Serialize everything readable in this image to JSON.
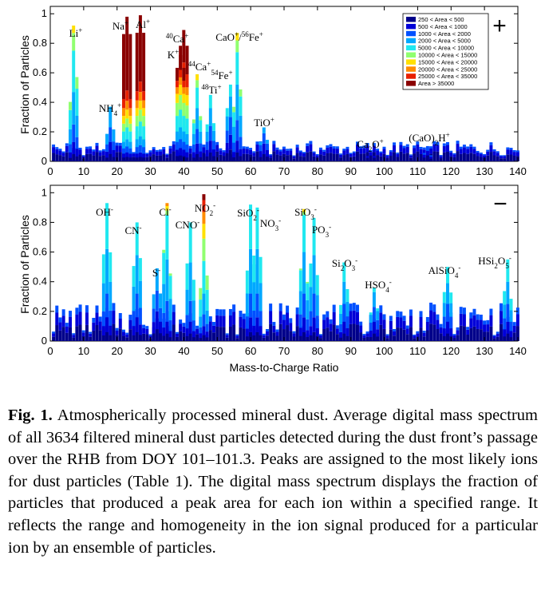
{
  "chart_data": [
    {
      "type": "bar",
      "stacked": true,
      "polarity": "+",
      "xlim": [
        0,
        140
      ],
      "ylim": [
        0,
        1.05
      ],
      "xticks": [
        "0",
        "10",
        "20",
        "30",
        "40",
        "50",
        "60",
        "70",
        "80",
        "90",
        "100",
        "110",
        "120",
        "130",
        "140"
      ],
      "yticks": [
        "0",
        "0.2",
        "0.4",
        "0.6",
        "0.8",
        "1"
      ],
      "ylabel": "Fraction of Particles",
      "grid": false,
      "legend_placement": "top-right",
      "legend": [
        {
          "label": "250 < Area < 500",
          "color": "#00008a"
        },
        {
          "label": "500 < Area < 1000",
          "color": "#0000d8"
        },
        {
          "label": "1000 < Area < 2000",
          "color": "#0050ff"
        },
        {
          "label": "2000 < Area < 5000",
          "color": "#00a8ff"
        },
        {
          "label": "5000 < Area < 10000",
          "color": "#20e8f0"
        },
        {
          "label": "10000 < Area < 15000",
          "color": "#90ff70"
        },
        {
          "label": "15000 < Area < 20000",
          "color": "#ffe000"
        },
        {
          "label": "20000 < Area < 25000",
          "color": "#ff8c00"
        },
        {
          "label": "25000 < Area < 35000",
          "color": "#e82000"
        },
        {
          "label": "Area > 35000",
          "color": "#8a0000"
        }
      ],
      "peaks": [
        {
          "label": "Li+",
          "mz": 7,
          "total": 0.92,
          "stack": [
            0.05,
            0.08,
            0.12,
            0.22,
            0.28,
            0.12,
            0.05
          ]
        },
        {
          "label": "NH4+",
          "mz": 18,
          "total": 0.37,
          "stack": [
            0.05,
            0.08,
            0.1,
            0.14
          ]
        },
        {
          "label": "Na+",
          "mz": 23,
          "total": 0.98,
          "stack": [
            0.03,
            0.03,
            0.04,
            0.05,
            0.08,
            0.06,
            0.06,
            0.06,
            0.07,
            0.5
          ]
        },
        {
          "label": "Al+",
          "mz": 27,
          "total": 0.99,
          "stack": [
            0.03,
            0.03,
            0.05,
            0.06,
            0.1,
            0.08,
            0.06,
            0.06,
            0.07,
            0.45
          ]
        },
        {
          "label": "40Ca+",
          "mz": 40,
          "total": 0.89,
          "stack": [
            0.03,
            0.04,
            0.06,
            0.08,
            0.12,
            0.1,
            0.08,
            0.06,
            0.1,
            0.22
          ]
        },
        {
          "label": "K+",
          "mz": 39,
          "total": 0.72,
          "stack": [
            0.04,
            0.05,
            0.06,
            0.08,
            0.12,
            0.1,
            0.07,
            0.05,
            0.05,
            0.1
          ]
        },
        {
          "label": "44Ca+",
          "mz": 44,
          "total": 0.59,
          "stack": [
            0.05,
            0.07,
            0.1,
            0.14,
            0.14,
            0.05,
            0.04
          ]
        },
        {
          "label": "54Fe+",
          "mz": 54,
          "total": 0.52,
          "stack": [
            0.08,
            0.1,
            0.12,
            0.14,
            0.08
          ]
        },
        {
          "label": "48Ti+",
          "mz": 48,
          "total": 0.45,
          "stack": [
            0.06,
            0.08,
            0.1,
            0.12,
            0.09
          ]
        },
        {
          "label": "CaO+/56Fe+",
          "mz": 56,
          "total": 0.87,
          "stack": [
            0.06,
            0.08,
            0.14,
            0.24,
            0.22,
            0.08,
            0.05
          ]
        },
        {
          "label": "TiO+",
          "mz": 64,
          "total": 0.23,
          "stack": [
            0.05,
            0.07,
            0.07,
            0.04
          ]
        },
        {
          "label": "Ca2O+",
          "mz": 96,
          "total": 0.06,
          "stack": [
            0.04,
            0.02
          ]
        },
        {
          "label": "(CaO)2H+",
          "mz": 113,
          "total": 0.09,
          "stack": [
            0.04,
            0.03,
            0.02
          ]
        }
      ],
      "annotations": [
        "Li+",
        "NH4+",
        "Na+",
        "Al+",
        "40Ca+",
        "K+",
        "44Ca+",
        "54Fe+",
        "48Ti+",
        "CaO+/56Fe+",
        "TiO+",
        "Ca2O+",
        "(CaO)2H+"
      ]
    },
    {
      "type": "bar",
      "stacked": true,
      "polarity": "−",
      "xlim": [
        0,
        140
      ],
      "ylim": [
        0,
        1.05
      ],
      "xticks": [
        "0",
        "10",
        "20",
        "30",
        "40",
        "50",
        "60",
        "70",
        "80",
        "90",
        "100",
        "110",
        "120",
        "130",
        "140"
      ],
      "yticks": [
        "0",
        "0.2",
        "0.4",
        "0.6",
        "0.8",
        "1"
      ],
      "ylabel": "Fraction of Particles",
      "xlabel": "Mass-to-Charge Ratio",
      "grid": false,
      "peaks": [
        {
          "label": "OH-",
          "mz": 17,
          "total": 0.93,
          "stack": [
            0.06,
            0.1,
            0.16,
            0.3,
            0.31
          ]
        },
        {
          "label": "CN-",
          "mz": 26,
          "total": 0.8,
          "stack": [
            0.06,
            0.1,
            0.16,
            0.26,
            0.22
          ]
        },
        {
          "label": "S-",
          "mz": 32,
          "total": 0.49,
          "stack": [
            0.08,
            0.12,
            0.14,
            0.15
          ]
        },
        {
          "label": "Cl-",
          "mz": 35,
          "total": 0.93,
          "stack": [
            0.05,
            0.08,
            0.14,
            0.28,
            0.3,
            0.03,
            0.03,
            0.02
          ]
        },
        {
          "label": "CNO-",
          "mz": 42,
          "total": 0.8,
          "stack": [
            0.05,
            0.08,
            0.14,
            0.26,
            0.27
          ]
        },
        {
          "label": "NO2-",
          "mz": 46,
          "total": 0.99,
          "stack": [
            0.04,
            0.06,
            0.08,
            0.14,
            0.22,
            0.15,
            0.1,
            0.08,
            0.08,
            0.04
          ]
        },
        {
          "label": "SiO2-",
          "mz": 60,
          "total": 0.92,
          "stack": [
            0.06,
            0.1,
            0.16,
            0.3,
            0.3
          ]
        },
        {
          "label": "NO3-",
          "mz": 62,
          "total": 0.9,
          "stack": [
            0.06,
            0.1,
            0.16,
            0.3,
            0.28
          ]
        },
        {
          "label": "SiO3-",
          "mz": 76,
          "total": 0.89,
          "stack": [
            0.06,
            0.1,
            0.16,
            0.28,
            0.25,
            0.02,
            0.02
          ]
        },
        {
          "label": "PO3-",
          "mz": 79,
          "total": 0.83,
          "stack": [
            0.06,
            0.1,
            0.16,
            0.26,
            0.25
          ]
        },
        {
          "label": "Si2O3-",
          "mz": 88,
          "total": 0.53,
          "stack": [
            0.05,
            0.08,
            0.12,
            0.15,
            0.13
          ]
        },
        {
          "label": "HSO4-",
          "mz": 97,
          "total": 0.36,
          "stack": [
            0.05,
            0.08,
            0.1,
            0.1,
            0.03
          ]
        },
        {
          "label": "AlSiO4-",
          "mz": 119,
          "total": 0.5,
          "stack": [
            0.05,
            0.08,
            0.12,
            0.14,
            0.11
          ]
        },
        {
          "label": "HSi2O5-",
          "mz": 137,
          "total": 0.55,
          "stack": [
            0.05,
            0.08,
            0.12,
            0.15,
            0.15
          ]
        }
      ],
      "annotations": [
        "OH-",
        "CN-",
        "S-",
        "Cl-",
        "CNO-",
        "NO2-",
        "SiO2-",
        "NO3-",
        "SiO3-",
        "PO3-",
        "Si2O3-",
        "HSO4-",
        "AlSiO4-",
        "HSi2O5-"
      ]
    }
  ],
  "caption": {
    "figure_label": "Fig. 1.",
    "text": "Atmospherically processed mineral dust. Average digital mass spectrum of all 3634 filtered mineral dust particles detected during the dust front’s passage over the RHB from DOY 101–101.3. Peaks are assigned to the most likely ions for dust particles (Table 1). The digital mass spectrum displays the fraction of particles that produced a peak area for each ion within a specified range. It reflects the range and homogeneity in the ion signal produced for a particular ion by an ensemble of particles."
  }
}
